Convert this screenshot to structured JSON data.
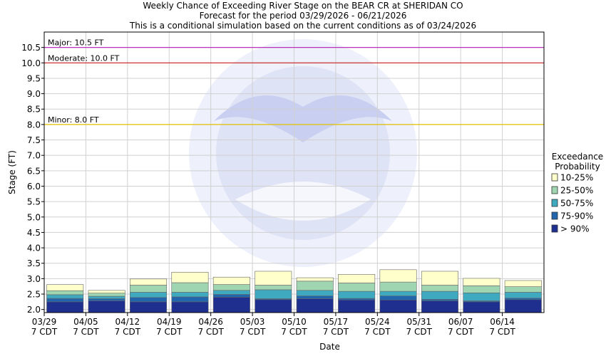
{
  "chart_data": {
    "type": "bar",
    "title": "Weekly Chance of Exceeding River Stage on the BEAR CR at SHERIDAN CO",
    "subtitle": "Forecast for the period 03/29/2026 - 06/21/2026",
    "subtitle2": "This is a conditional simulation based on the current conditions as of 03/24/2026",
    "xlabel": "Date",
    "ylabel": "Stage (FT)",
    "ylim": [
      1.9,
      11.0
    ],
    "yticks": [
      "2.0",
      "2.5",
      "3.0",
      "3.5",
      "4.0",
      "4.5",
      "5.0",
      "5.5",
      "6.0",
      "6.5",
      "7.0",
      "7.5",
      "8.0",
      "8.5",
      "9.0",
      "9.5",
      "10.0",
      "10.5"
    ],
    "grid": true,
    "legend_placement": "right",
    "categories": [
      "03/29",
      "04/05",
      "04/12",
      "04/19",
      "04/26",
      "05/03",
      "05/10",
      "05/17",
      "05/24",
      "05/31",
      "06/07",
      "06/14"
    ],
    "tick_labels": [
      {
        "date": "03/29",
        "tz": "7 CDT"
      },
      {
        "date": "04/05",
        "tz": "7 CDT"
      },
      {
        "date": "04/12",
        "tz": "7 CDT"
      },
      {
        "date": "04/19",
        "tz": "7 CDT"
      },
      {
        "date": "04/26",
        "tz": "7 CDT"
      },
      {
        "date": "05/03",
        "tz": "7 CDT"
      },
      {
        "date": "05/10",
        "tz": "7 CDT"
      },
      {
        "date": "05/17",
        "tz": "7 CDT"
      },
      {
        "date": "05/24",
        "tz": "7 CDT"
      },
      {
        "date": "05/31",
        "tz": "7 CDT"
      },
      {
        "date": "06/07",
        "tz": "7 CDT"
      },
      {
        "date": "06/14",
        "tz": "7 CDT"
      }
    ],
    "series": [
      {
        "name": "> 90%",
        "color": "#1f2f8f",
        "values": [
          2.25,
          2.28,
          2.25,
          2.25,
          2.4,
          2.32,
          2.35,
          2.31,
          2.31,
          2.28,
          2.25,
          2.32
        ]
      },
      {
        "name": "75-90%",
        "color": "#2166ac",
        "values": [
          2.36,
          2.35,
          2.39,
          2.41,
          2.49,
          2.35,
          2.44,
          2.36,
          2.44,
          2.33,
          2.28,
          2.37
        ]
      },
      {
        "name": "50-75%",
        "color": "#3fa9c0",
        "values": [
          2.48,
          2.43,
          2.56,
          2.56,
          2.62,
          2.64,
          2.62,
          2.59,
          2.59,
          2.59,
          2.54,
          2.56
        ]
      },
      {
        "name": "25-50%",
        "color": "#9fd5b0",
        "values": [
          2.61,
          2.53,
          2.79,
          2.87,
          2.81,
          2.79,
          2.92,
          2.86,
          2.89,
          2.79,
          2.77,
          2.74
        ]
      },
      {
        "name": "10-25%",
        "color": "#ffffcc",
        "values": [
          2.81,
          2.62,
          2.99,
          3.21,
          3.05,
          3.24,
          3.03,
          3.14,
          3.29,
          3.24,
          3.01,
          2.94
        ]
      }
    ],
    "legend_title": [
      "Exceedance",
      "Probability"
    ],
    "legend_order": [
      "10-25%",
      "25-50%",
      "50-75%",
      "75-90%",
      "> 90%"
    ],
    "thresholds": [
      {
        "label": "Major: 10.5 FT",
        "value": 10.5,
        "color": "#bb33bb"
      },
      {
        "label": "Moderate: 10.0 FT",
        "value": 10.0,
        "color": "#cc2222"
      },
      {
        "label": "Minor: 8.0 FT",
        "value": 8.0,
        "color": "#e0c000"
      }
    ],
    "watermark_text": "NATIONAL OCEANIC AND ATMOSPHERIC ADMINISTRATION U.S. DEPARTMENT OF COMMERCE NOAA"
  }
}
